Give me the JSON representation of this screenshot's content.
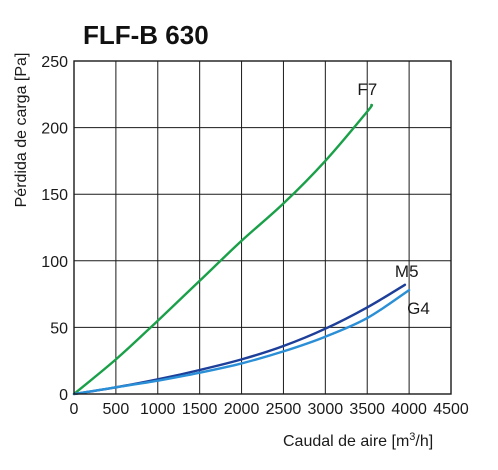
{
  "chart_data": {
    "type": "line",
    "title": "FLF-B 630",
    "xlabel_main": "Caudal de aire [m",
    "xlabel_sup": "3",
    "xlabel_tail": "/h]",
    "ylabel": "Pérdida de carga [Pa]",
    "xlim": [
      0,
      4500
    ],
    "ylim": [
      0,
      250
    ],
    "x_ticks": [
      0,
      500,
      1000,
      1500,
      2000,
      2500,
      3000,
      3500,
      4000,
      4500
    ],
    "y_ticks": [
      0,
      50,
      100,
      150,
      200,
      250
    ],
    "grid": true,
    "series": [
      {
        "name": "F7",
        "color": "#1aa049",
        "x": [
          0,
          500,
          1000,
          1500,
          2000,
          2500,
          3000,
          3500,
          3550
        ],
        "y": [
          0,
          26,
          55,
          85,
          115,
          143,
          175,
          212,
          217
        ]
      },
      {
        "name": "M5",
        "color": "#1d3f99",
        "x": [
          0,
          500,
          1000,
          1500,
          2000,
          2500,
          3000,
          3500,
          3950
        ],
        "y": [
          0,
          5,
          11,
          18,
          26,
          36,
          49,
          65,
          82
        ]
      },
      {
        "name": "G4",
        "color": "#2a8fd6",
        "x": [
          0,
          500,
          1000,
          1500,
          2000,
          2500,
          3000,
          3500,
          4000
        ],
        "y": [
          0,
          5,
          10,
          16,
          23,
          32,
          43,
          57,
          78
        ]
      }
    ]
  }
}
